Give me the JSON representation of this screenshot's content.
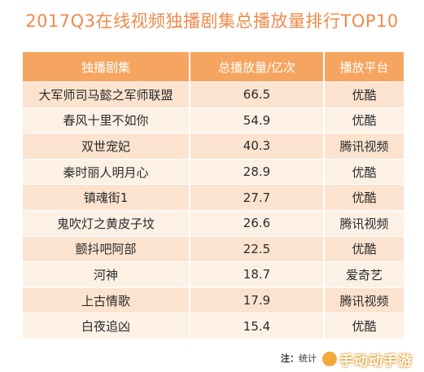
{
  "title": "2017Q3在线视频独播剧集总播放量排行TOP10",
  "chart_data": {
    "type": "table",
    "title": "2017Q3在线视频独播剧集总播放量排行TOP10",
    "columns": [
      "独播剧集",
      "总播放量/亿次",
      "播放平台"
    ],
    "rows": [
      [
        "大军师司马懿之军师联盟",
        "66.5",
        "优酷"
      ],
      [
        "春风十里不如你",
        "54.9",
        "优酷"
      ],
      [
        "双世宠妃",
        "40.3",
        "腾讯视频"
      ],
      [
        "秦时丽人明月心",
        "28.9",
        "优酷"
      ],
      [
        "镇魂街1",
        "27.7",
        "优酷"
      ],
      [
        "鬼吹灯之黄皮子坟",
        "26.6",
        "腾讯视频"
      ],
      [
        "颤抖吧阿部",
        "22.5",
        "优酷"
      ],
      [
        "河神",
        "18.7",
        "爱奇艺"
      ],
      [
        "上古情歌",
        "17.9",
        "腾讯视频"
      ],
      [
        "白夜追凶",
        "15.4",
        "优酷"
      ]
    ]
  },
  "note": {
    "label": "注：",
    "text": "统计"
  },
  "watermark": {
    "text": "手动动手游"
  },
  "colors": {
    "title": "#f08a4b",
    "header_bg": "#f6a560",
    "row_odd": "#fbe3cf",
    "row_even": "#fdf1e6"
  }
}
